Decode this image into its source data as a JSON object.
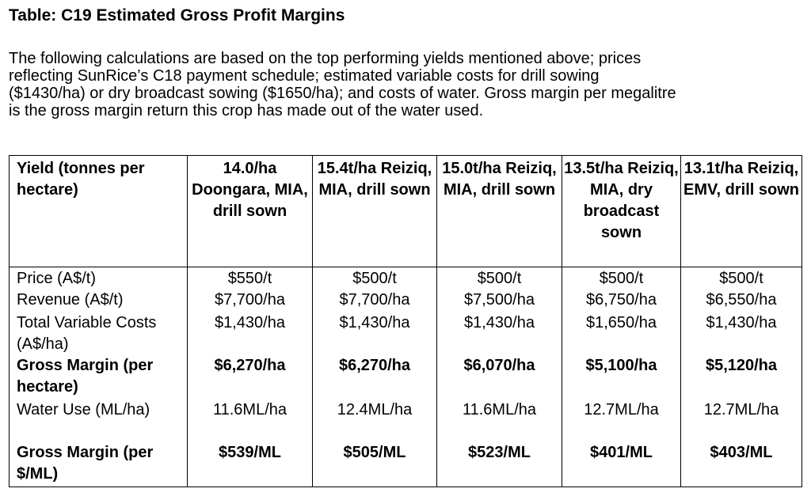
{
  "title": "Table: C19 Estimated Gross Profit Margins",
  "intro_lines": [
    "The following calculations are based on the top performing yields mentioned above; prices",
    "reflecting SunRice’s C18 payment schedule; estimated variable costs for drill sowing",
    "($1430/ha) or dry broadcast sowing ($1650/ha); and costs of water. Gross margin per megalitre",
    "is the gross margin return this crop has made out of the water used."
  ],
  "table": {
    "header": {
      "label": "Yield (tonnes per hectare)",
      "columns": [
        "14.0/ha Doongara, MIA, drill sown",
        "15.4t/ha Reiziq, MIA, drill sown",
        "15.0t/ha Reiziq, MIA, drill sown",
        "13.5t/ha Reiziq, MIA, dry broadcast sown",
        "13.1t/ha Reiziq, EMV, drill sown"
      ]
    },
    "rows": [
      {
        "label": "Price (A$/t)",
        "values": [
          "$550/t",
          "$500/t",
          "$500/t",
          "$500/t",
          "$500/t"
        ]
      },
      {
        "label": "Revenue (A$/t)",
        "values": [
          "$7,700/ha",
          "$7,700/ha",
          "$7,500/ha",
          "$6,750/ha",
          "$6,550/ha"
        ]
      },
      {
        "label": "Total Variable Costs (A$/ha)",
        "values": [
          "$1,430/ha",
          "$1,430/ha",
          "$1,430/ha",
          "$1,650/ha",
          "$1,430/ha"
        ]
      },
      {
        "label": "Gross Margin (per hectare)",
        "values": [
          "$6,270/ha",
          "$6,270/ha",
          "$6,070/ha",
          "$5,100/ha",
          "$5,120/ha"
        ]
      },
      {
        "label": "Water Use (ML/ha)",
        "values": [
          "11.6ML/ha",
          "12.4ML/ha",
          "11.6ML/ha",
          "12.7ML/ha",
          "12.7ML/ha"
        ]
      },
      {
        "label": "Gross Margin (per $/ML)",
        "values": [
          "$539/ML",
          "$505/ML",
          "$523/ML",
          "$401/ML",
          "$403/ML"
        ]
      }
    ]
  }
}
